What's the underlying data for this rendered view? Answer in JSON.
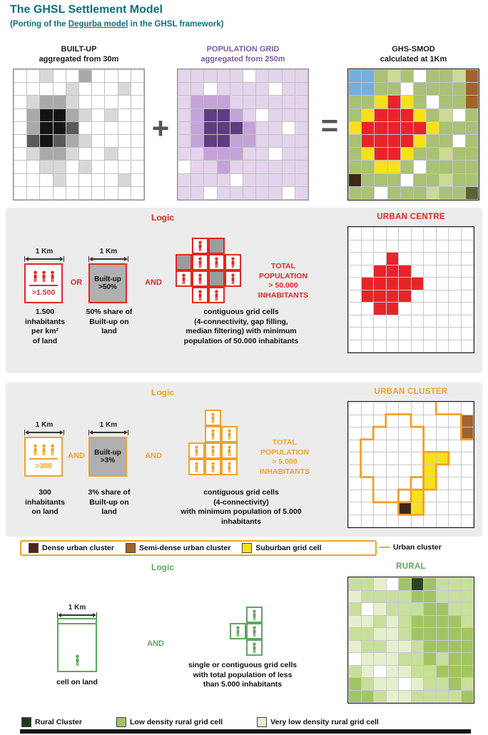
{
  "title": "The GHSL Settlement Model",
  "subtitle": {
    "prefix": "(Porting of the ",
    "link": "Degurba model",
    "suffix": " in the GHSL framework)"
  },
  "top": {
    "plus": "+",
    "equals": "=",
    "builtup_title": "BUILT-UP",
    "builtup_sub": "aggregated from 30m",
    "population_title": "POPULATION GRID",
    "population_sub": "aggregated from 250m",
    "smod_title": "GHS-SMOD",
    "smod_sub": "calculated at 1Km"
  },
  "colors": {
    "title_teal": "#0a7080",
    "urban_centre_red": "#e32726",
    "urban_cluster_orange": "#f2a12c",
    "rural_green": "#5ea75f",
    "population_purple": "#7d5ba6",
    "panel_gray": "#ececec"
  },
  "palette": {
    "W": "#ffffff",
    "g1": "#d8d8d8",
    "g2": "#a9a9a9",
    "g3": "#5a5a5a",
    "g4": "#141414",
    "p1": "#e4d4ec",
    "p2": "#c5a3d6",
    "p4": "#5e3d80",
    "B": "#76aedd",
    "G": "#a9c276",
    "g": "#cdd996",
    "Y": "#f8e11c",
    "R": "#e8242b",
    "N": "#a2622b",
    "D": "#3c2a15",
    "O": "#5c6330",
    "e1": "#e6efcd",
    "e2": "#c7de9d",
    "e3": "#a2c564",
    "K": "#2c441c"
  },
  "grids": {
    "builtup": {
      "cells": [
        [
          "W",
          "W",
          "g1",
          "W",
          "W",
          "g2",
          "W",
          "W",
          "W",
          "W"
        ],
        [
          "W",
          "W",
          "W",
          "W",
          "g1",
          "W",
          "W",
          "W",
          "g1",
          "W"
        ],
        [
          "W",
          "g1",
          "g2",
          "g2",
          "g1",
          "W",
          "W",
          "W",
          "W",
          "W"
        ],
        [
          "W",
          "g2",
          "g4",
          "g4",
          "g2",
          "g1",
          "W",
          "g1",
          "W",
          "W"
        ],
        [
          "W",
          "g2",
          "g4",
          "g4",
          "g3",
          "W",
          "W",
          "W",
          "W",
          "W"
        ],
        [
          "W",
          "g3",
          "g4",
          "g3",
          "g2",
          "g1",
          "W",
          "W",
          "W",
          "W"
        ],
        [
          "W",
          "g1",
          "g2",
          "g2",
          "g1",
          "W",
          "W",
          "g1",
          "W",
          "W"
        ],
        [
          "W",
          "W",
          "g1",
          "g1",
          "W",
          "g1",
          "W",
          "W",
          "W",
          "W"
        ],
        [
          "W",
          "W",
          "W",
          "g1",
          "W",
          "W",
          "W",
          "W",
          "g1",
          "W"
        ],
        [
          "W",
          "W",
          "W",
          "W",
          "W",
          "W",
          "W",
          "W",
          "W",
          "W"
        ]
      ]
    },
    "population": {
      "cells": [
        [
          "p1",
          "p1",
          "p1",
          "p1",
          "p1",
          "W",
          "p1",
          "p1",
          "p1",
          "p1"
        ],
        [
          "p1",
          "p1",
          "W",
          "p1",
          "p1",
          "p1",
          "p1",
          "W",
          "p1",
          "p1"
        ],
        [
          "p1",
          "p2",
          "p2",
          "p2",
          "p1",
          "p1",
          "p1",
          "p1",
          "p1",
          "p1"
        ],
        [
          "p1",
          "p2",
          "p4",
          "p4",
          "p2",
          "p1",
          "W",
          "p1",
          "p1",
          "p1"
        ],
        [
          "p1",
          "p2",
          "p4",
          "p4",
          "p4",
          "p2",
          "p1",
          "p1",
          "W",
          "p1"
        ],
        [
          "p1",
          "p2",
          "p4",
          "p4",
          "p2",
          "p2",
          "p1",
          "p1",
          "p1",
          "p1"
        ],
        [
          "p1",
          "p1",
          "p2",
          "p2",
          "p2",
          "p1",
          "p1",
          "W",
          "p1",
          "p1"
        ],
        [
          "W",
          "p1",
          "p1",
          "p2",
          "p1",
          "p1",
          "p1",
          "p1",
          "p1",
          "p1"
        ],
        [
          "p1",
          "p1",
          "p1",
          "p1",
          "W",
          "p1",
          "p1",
          "p1",
          "p1",
          "p1"
        ],
        [
          "p1",
          "p1",
          "W",
          "p1",
          "p1",
          "p1",
          "p1",
          "p1",
          "W",
          "p1"
        ]
      ]
    },
    "smod": {
      "cells": [
        [
          "B",
          "B",
          "G",
          "g",
          "G",
          "W",
          "G",
          "G",
          "g",
          "N"
        ],
        [
          "B",
          "B",
          "G",
          "G",
          "W",
          "G",
          "G",
          "G",
          "G",
          "N"
        ],
        [
          "G",
          "G",
          "Y",
          "R",
          "Y",
          "G",
          "W",
          "G",
          "G",
          "N"
        ],
        [
          "G",
          "Y",
          "R",
          "R",
          "R",
          "Y",
          "G",
          "g",
          "W",
          "G"
        ],
        [
          "Y",
          "R",
          "R",
          "R",
          "R",
          "R",
          "Y",
          "G",
          "G",
          "G"
        ],
        [
          "G",
          "R",
          "R",
          "R",
          "R",
          "Y",
          "G",
          "G",
          "W",
          "G"
        ],
        [
          "G",
          "Y",
          "R",
          "R",
          "Y",
          "G",
          "G",
          "g",
          "G",
          "G"
        ],
        [
          "G",
          "G",
          "Y",
          "Y",
          "G",
          "W",
          "G",
          "G",
          "G",
          "G"
        ],
        [
          "D",
          "G",
          "G",
          "G",
          "W",
          "G",
          "G",
          "g",
          "G",
          "G"
        ],
        [
          "G",
          "G",
          "W",
          "G",
          "G",
          "G",
          "g",
          "G",
          "G",
          "O"
        ]
      ]
    },
    "urban_centre": {
      "cells": [
        [
          "W",
          "W",
          "W",
          "W",
          "W",
          "W",
          "W",
          "W",
          "W",
          "W"
        ],
        [
          "W",
          "W",
          "W",
          "W",
          "W",
          "W",
          "W",
          "W",
          "W",
          "W"
        ],
        [
          "W",
          "W",
          "W",
          "R",
          "W",
          "W",
          "W",
          "W",
          "W",
          "W"
        ],
        [
          "W",
          "W",
          "R",
          "R",
          "R",
          "W",
          "W",
          "W",
          "W",
          "W"
        ],
        [
          "W",
          "R",
          "R",
          "R",
          "R",
          "R",
          "W",
          "W",
          "W",
          "W"
        ],
        [
          "W",
          "R",
          "R",
          "R",
          "R",
          "W",
          "W",
          "W",
          "W",
          "W"
        ],
        [
          "W",
          "W",
          "R",
          "R",
          "W",
          "W",
          "W",
          "W",
          "W",
          "W"
        ],
        [
          "W",
          "W",
          "W",
          "W",
          "W",
          "W",
          "W",
          "W",
          "W",
          "W"
        ],
        [
          "W",
          "W",
          "W",
          "W",
          "W",
          "W",
          "W",
          "W",
          "W",
          "W"
        ],
        [
          "W",
          "W",
          "W",
          "W",
          "W",
          "W",
          "W",
          "W",
          "W",
          "W"
        ]
      ]
    },
    "urban_cluster": {
      "cells": [
        [
          "W",
          "W",
          "W",
          "W",
          "W",
          "W",
          "W",
          "W",
          "W",
          "W"
        ],
        [
          "W",
          "W",
          "W",
          "W",
          "W",
          "W",
          "W",
          "W",
          "W",
          "N"
        ],
        [
          "W",
          "W",
          "W",
          "W",
          "W",
          "W",
          "W",
          "W",
          "W",
          "N"
        ],
        [
          "W",
          "W",
          "W",
          "W",
          "W",
          "W",
          "W",
          "W",
          "W",
          "W"
        ],
        [
          "W",
          "W",
          "W",
          "W",
          "W",
          "W",
          "Y",
          "Y",
          "W",
          "W"
        ],
        [
          "W",
          "W",
          "W",
          "W",
          "W",
          "W",
          "Y",
          "W",
          "W",
          "W"
        ],
        [
          "W",
          "W",
          "W",
          "W",
          "W",
          "W",
          "Y",
          "W",
          "W",
          "W"
        ],
        [
          "W",
          "W",
          "W",
          "W",
          "W",
          "Y",
          "W",
          "W",
          "W",
          "W"
        ],
        [
          "W",
          "W",
          "W",
          "W",
          "D",
          "Y",
          "W",
          "W",
          "W",
          "W"
        ],
        [
          "W",
          "W",
          "W",
          "W",
          "W",
          "W",
          "W",
          "W",
          "W",
          "W"
        ]
      ],
      "outlines": [
        "M3 1 L5 1 L5 2 L6 2 L6 6 L5 6 L5 7 L4 7 L4 8 L2 8 L2 6 L1 6 L1 3 L2 3 L2 2 L3 2 Z",
        "M7 0 L7 1 L9 1 L9 3 L10 3",
        "M6 4 L8 4 L8 5 L7 5 L7 7 L6 7 L6 9 L4 9 L4 8 L5 8 L5 7 L6 7 L6 4 Z"
      ]
    },
    "rural": {
      "cells": [
        [
          "e2",
          "e2",
          "e1",
          "W",
          "e3",
          "K",
          "e3",
          "e2",
          "e2",
          "e2"
        ],
        [
          "e1",
          "e2",
          "e2",
          "e2",
          "e2",
          "e3",
          "e3",
          "e2",
          "e2",
          "e2"
        ],
        [
          "e2",
          "W",
          "e1",
          "e2",
          "e2",
          "e2",
          "e3",
          "e3",
          "e2",
          "e2"
        ],
        [
          "e1",
          "e1",
          "e2",
          "e1",
          "e2",
          "e3",
          "e3",
          "e3",
          "e3",
          "e2"
        ],
        [
          "e2",
          "e2",
          "e1",
          "e1",
          "e2",
          "e3",
          "e3",
          "e3",
          "e3",
          "e3"
        ],
        [
          "e1",
          "e2",
          "e2",
          "e1",
          "e1",
          "e2",
          "e3",
          "e3",
          "e3",
          "e3"
        ],
        [
          "W",
          "e1",
          "e1",
          "e1",
          "e2",
          "e2",
          "e3",
          "e2",
          "e3",
          "e3"
        ],
        [
          "e2",
          "e1",
          "W",
          "e1",
          "e1",
          "e2",
          "e2",
          "e3",
          "e3",
          "e3"
        ],
        [
          "e3",
          "e2",
          "e1",
          "e1",
          "W",
          "e1",
          "e2",
          "e2",
          "e3",
          "e2"
        ],
        [
          "e3",
          "e3",
          "e2",
          "e1",
          "e1",
          "e2",
          "e2",
          "e2",
          "e2",
          "e3"
        ]
      ]
    }
  },
  "mini": {
    "urban_centre": [
      [
        "_",
        "P",
        "X",
        "_"
      ],
      [
        "X",
        "P",
        "P",
        "P"
      ],
      [
        "P",
        "P",
        "X",
        "P"
      ],
      [
        "_",
        "P",
        "P",
        "_"
      ]
    ],
    "urban_cluster": [
      [
        "_",
        "P",
        "_"
      ],
      [
        "_",
        "P",
        "P"
      ],
      [
        "P",
        "P",
        "P"
      ],
      [
        "P",
        "P",
        "P"
      ]
    ],
    "rural": [
      [
        "_",
        "P"
      ],
      [
        "P",
        "P"
      ],
      [
        "_",
        "P"
      ]
    ]
  },
  "sections": {
    "urban_centre": {
      "logic": "Logic",
      "title": "URBAN CENTRE",
      "km": "1 Km",
      "km2": "1 Km",
      "box1_value": ">1.500",
      "or": "OR",
      "box2": "Built-up\n>50%",
      "and": "AND",
      "total": "TOTAL\nPOPULATION\n> 50.000\nINHABITANTS",
      "cap1": "1.500\ninhabitants\nper km²\nof land",
      "cap2": "50% share of\nBuilt-up on\nland",
      "cap3": "contiguous grid cells\n(4-connectivity, gap filling,\nmedian filtering) with minimum\npopulation of 50.000 inhabitants"
    },
    "urban_cluster": {
      "logic": "Logic",
      "title": "URBAN CLUSTER",
      "km": "1 Km",
      "km2": "1 Km",
      "box1_value": ">300",
      "and_small": "AND",
      "box2": "Built-up\n>3%",
      "and": "AND",
      "total": "TOTAL\nPOPULATION\n> 5.000\nINHABITANTS",
      "cap1": "300\ninhabitants\non land",
      "cap2": "3% share of\nBuilt-up on\nland",
      "cap3": "contiguous grid cells\n(4-connectivity)\nwith minimum population of 5.000\ninhabitants",
      "legend": [
        {
          "color": "#53230f",
          "label": "Dense urban cluster"
        },
        {
          "color": "#a2622b",
          "label": "Semi-dense urban cluster"
        },
        {
          "color": "#f8e11c",
          "label": "Suburban grid cell"
        }
      ],
      "legend_outside": "Urban cluster"
    },
    "rural": {
      "logic": "Logic",
      "title": "RURAL",
      "km": "1 Km",
      "and": "AND",
      "cap1": "cell on land",
      "text": "single or contiguous grid cells\nwith total population of less\nthan 5.000 inhabitants",
      "legend": [
        {
          "color": "#21381a",
          "label": "Rural Cluster"
        },
        {
          "color": "#a2c564",
          "label": "Low density rural grid cell"
        },
        {
          "color": "#e6efcd",
          "label": "Very low density rural grid cell"
        }
      ]
    }
  }
}
